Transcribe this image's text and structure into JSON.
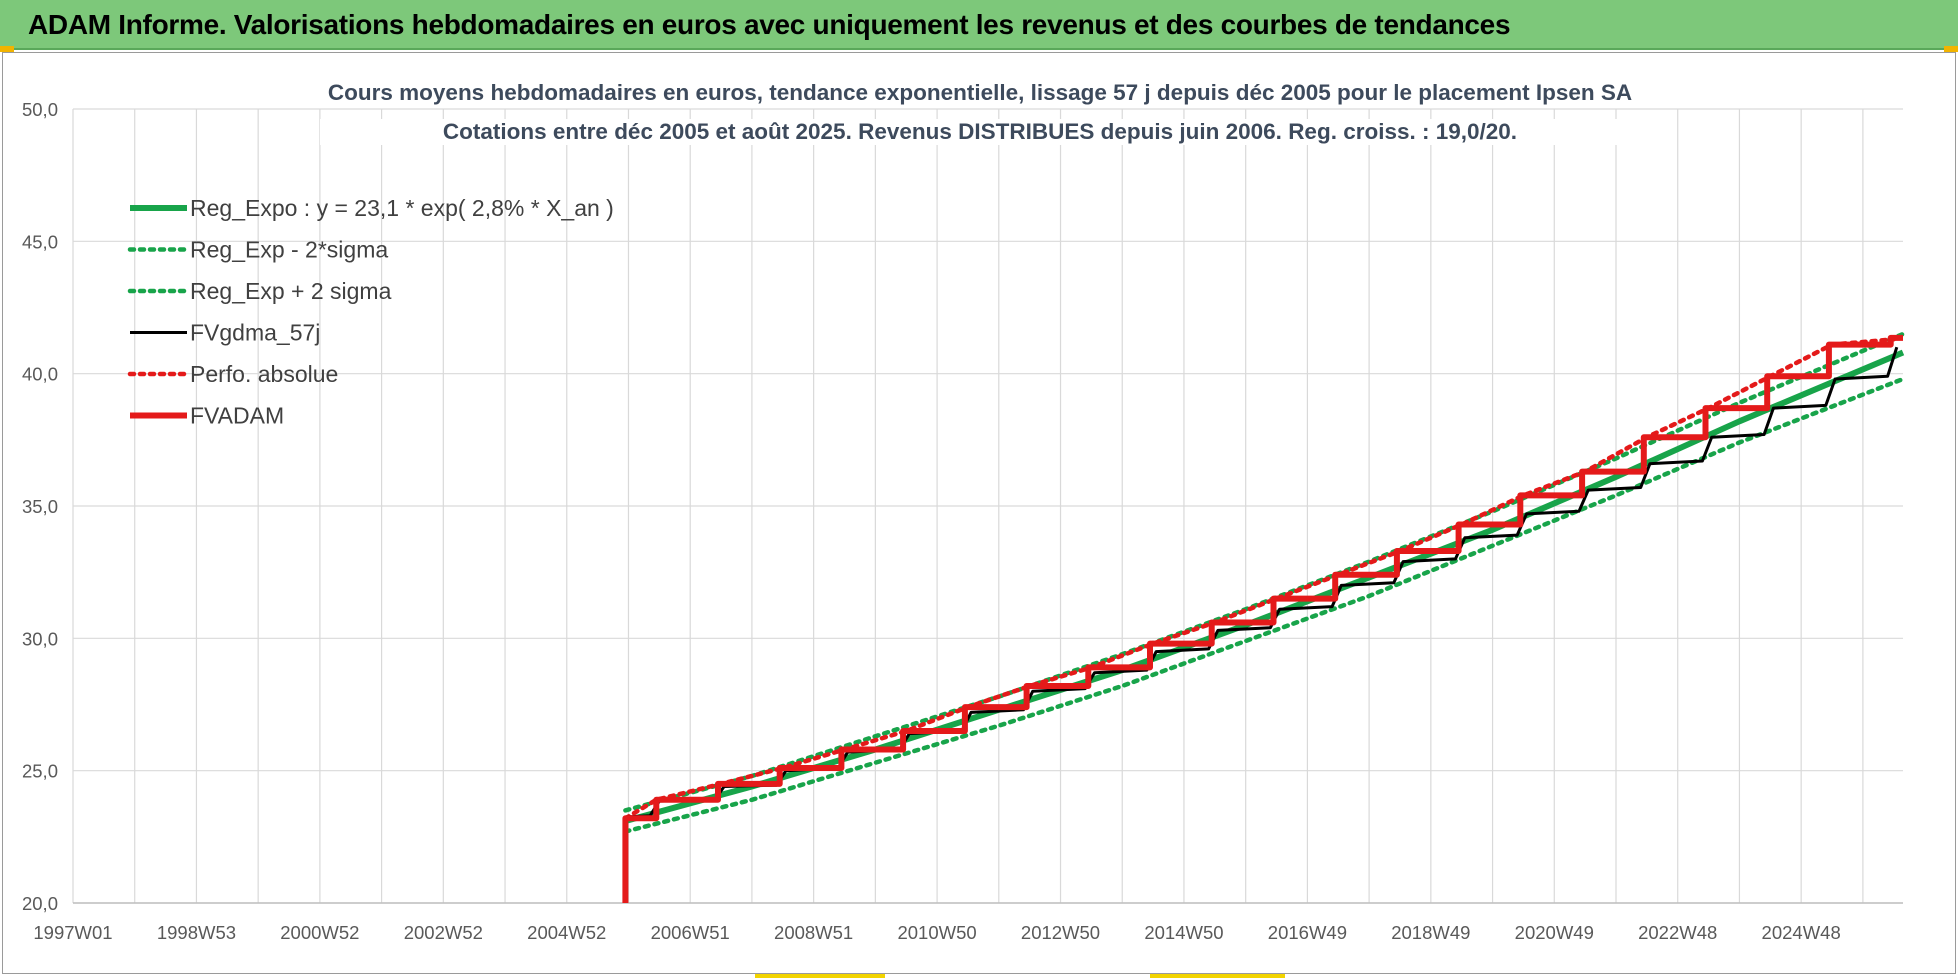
{
  "banner": {
    "title": "ADAM Informe. Valorisations hebdomadaires en euros avec uniquement les revenus et des courbes de tendances"
  },
  "colors": {
    "banner": "#7dc87a",
    "reg_expo": "#18a44a",
    "band": "#18a44a",
    "fvgdma": "#000000",
    "perfo": "#e41a1a",
    "fvadam": "#e41a1a",
    "grid": "#d9d9d9"
  },
  "chart_data": {
    "type": "line",
    "title": "Cours moyens hebdomadaires en euros, tendance exponentielle, lissage 57 j depuis déc 2005 pour le placement Ipsen SA",
    "subtitle": "Cotations entre déc 2005 et août 2025. Revenus DISTRIBUES depuis juin 2006. Reg. croiss. : 19,0/20.",
    "xlabel": "",
    "ylabel": "",
    "x_tick_labels": [
      "1997W01",
      "1998W53",
      "2000W52",
      "2002W52",
      "2004W52",
      "2006W51",
      "2008W51",
      "2010W50",
      "2012W50",
      "2014W50",
      "2016W49",
      "2018W49",
      "2020W49",
      "2022W48",
      "2024W48"
    ],
    "y_tick_labels": [
      "20,0",
      "25,0",
      "30,0",
      "35,0",
      "40,0",
      "45,0",
      "50,0"
    ],
    "ylim": [
      20,
      50
    ],
    "xlim_years": [
      1997.0,
      2026.65
    ],
    "grid": true,
    "legend_position": "top-left",
    "series": [
      {
        "name": "Reg_Expo : y = 23,1 * exp( 2,8% *  X_an )",
        "style": "solid-thick",
        "color": "#18a44a",
        "x": [
          2005.95,
          2008.0,
          2010.0,
          2012.0,
          2014.0,
          2016.0,
          2018.0,
          2020.0,
          2022.0,
          2024.0,
          2026.65
        ],
        "y": [
          23.1,
          24.4,
          25.8,
          27.3,
          28.8,
          30.5,
          32.3,
          34.1,
          36.1,
          38.2,
          40.8
        ]
      },
      {
        "name": "Reg_Exp - 2*sigma",
        "style": "dotted",
        "color": "#18a44a",
        "x": [
          2005.95,
          2008.0,
          2010.0,
          2012.0,
          2014.0,
          2016.0,
          2018.0,
          2020.0,
          2022.0,
          2024.0,
          2026.65
        ],
        "y": [
          22.7,
          23.9,
          25.3,
          26.7,
          28.2,
          29.9,
          31.6,
          33.5,
          35.4,
          37.4,
          39.8
        ]
      },
      {
        "name": "Reg_Exp + 2 sigma",
        "style": "dotted",
        "color": "#18a44a",
        "x": [
          2005.95,
          2008.0,
          2010.0,
          2012.0,
          2014.0,
          2016.0,
          2018.0,
          2020.0,
          2022.0,
          2024.0,
          2026.65
        ],
        "y": [
          23.5,
          24.8,
          26.3,
          27.8,
          29.4,
          31.1,
          32.9,
          34.8,
          36.8,
          38.9,
          41.5
        ]
      },
      {
        "name": "FVgdma_57j",
        "style": "solid",
        "color": "#000000",
        "x": [
          2005.95,
          2006.35,
          2006.5,
          2007.4,
          2007.55,
          2008.4,
          2008.55,
          2009.4,
          2009.55,
          2010.4,
          2010.55,
          2011.4,
          2011.55,
          2012.4,
          2012.55,
          2013.4,
          2013.55,
          2014.4,
          2014.55,
          2015.4,
          2015.55,
          2016.4,
          2016.55,
          2017.4,
          2017.55,
          2018.4,
          2018.55,
          2019.4,
          2019.55,
          2020.4,
          2020.55,
          2021.4,
          2021.55,
          2022.4,
          2022.55,
          2023.4,
          2023.55,
          2024.4,
          2024.55,
          2025.4,
          2025.55,
          2026.4,
          2026.55
        ],
        "y": [
          23.25,
          23.3,
          23.85,
          23.9,
          24.4,
          24.45,
          25.0,
          25.1,
          25.7,
          25.8,
          26.4,
          26.5,
          27.2,
          27.3,
          28.0,
          28.1,
          28.7,
          28.8,
          29.5,
          29.6,
          30.3,
          30.4,
          31.1,
          31.2,
          32.0,
          32.1,
          32.9,
          33.0,
          33.8,
          33.9,
          34.7,
          34.8,
          35.6,
          35.7,
          36.6,
          36.7,
          37.6,
          37.7,
          38.7,
          38.8,
          39.8,
          39.9,
          41.0
        ]
      },
      {
        "name": "Perfo. absolue",
        "style": "dotted",
        "color": "#e41a1a",
        "x": [
          2005.95,
          2006.45,
          2007.5,
          2008.5,
          2009.5,
          2010.5,
          2011.5,
          2012.5,
          2013.5,
          2014.5,
          2015.5,
          2016.5,
          2017.5,
          2018.5,
          2019.5,
          2020.5,
          2021.5,
          2022.5,
          2023.5,
          2024.5,
          2025.5,
          2026.5
        ],
        "y": [
          23.2,
          23.9,
          24.5,
          25.1,
          25.8,
          26.5,
          27.4,
          28.2,
          28.9,
          29.8,
          30.6,
          31.5,
          32.4,
          33.3,
          34.3,
          35.4,
          36.3,
          37.6,
          38.7,
          39.9,
          41.1,
          41.3
        ]
      },
      {
        "name": "FVADAM",
        "style": "solid-thick",
        "color": "#e41a1a",
        "x": [
          2005.95,
          2005.95,
          2006.45,
          2006.45,
          2007.45,
          2007.45,
          2008.45,
          2008.45,
          2009.45,
          2009.45,
          2010.45,
          2010.45,
          2011.45,
          2011.45,
          2012.45,
          2012.45,
          2013.45,
          2013.45,
          2014.45,
          2014.45,
          2015.45,
          2015.45,
          2016.45,
          2016.45,
          2017.45,
          2017.45,
          2018.45,
          2018.45,
          2019.45,
          2019.45,
          2020.45,
          2020.45,
          2021.45,
          2021.45,
          2022.45,
          2022.45,
          2023.45,
          2023.45,
          2024.45,
          2024.45,
          2025.45,
          2025.45,
          2026.45,
          2026.45,
          2026.65
        ],
        "y": [
          20.0,
          23.2,
          23.2,
          23.9,
          23.9,
          24.5,
          24.5,
          25.1,
          25.1,
          25.8,
          25.8,
          26.5,
          26.5,
          27.4,
          27.4,
          28.2,
          28.2,
          28.9,
          28.9,
          29.8,
          29.8,
          30.6,
          30.6,
          31.5,
          31.5,
          32.4,
          32.4,
          33.3,
          33.3,
          34.3,
          34.3,
          35.4,
          35.4,
          36.3,
          36.3,
          37.6,
          37.6,
          38.7,
          38.7,
          39.9,
          39.9,
          41.1,
          41.1,
          41.35,
          41.35
        ]
      }
    ]
  }
}
